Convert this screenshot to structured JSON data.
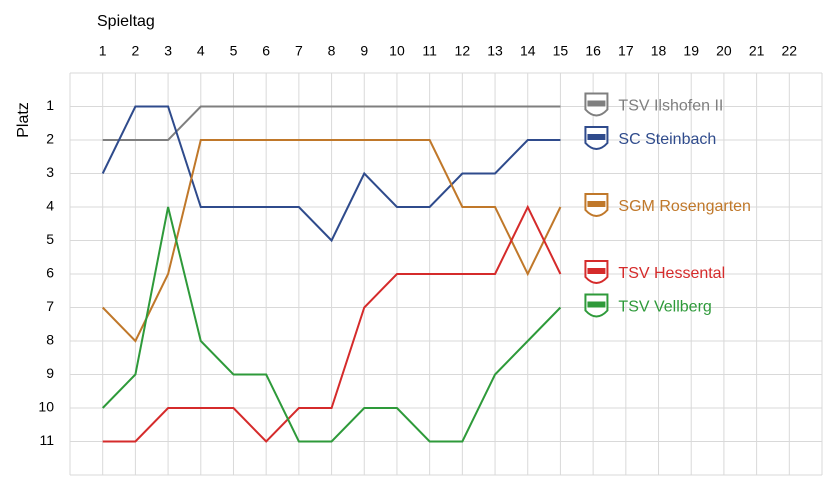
{
  "chart_data": {
    "type": "line",
    "x_label": "Spieltag",
    "y_label": "Platz",
    "x": [
      1,
      2,
      3,
      4,
      5,
      6,
      7,
      8,
      9,
      10,
      11,
      12,
      13,
      14,
      15,
      16,
      17,
      18,
      19,
      20,
      21,
      22
    ],
    "xlim": [
      0,
      23
    ],
    "xticks": [
      1,
      2,
      3,
      4,
      5,
      6,
      7,
      8,
      9,
      10,
      11,
      12,
      13,
      14,
      15,
      16,
      17,
      18,
      19,
      20,
      21,
      22
    ],
    "ylim": [
      12,
      0
    ],
    "yticks": [
      1,
      2,
      3,
      4,
      5,
      6,
      7,
      8,
      9,
      10,
      11
    ],
    "grid": true,
    "y_inverted": true,
    "series": [
      {
        "name": "TSV Ilshofen II",
        "color": "#7f7f7f",
        "values": [
          2,
          2,
          2,
          1,
          1,
          1,
          1,
          1,
          1,
          1,
          1,
          1,
          1,
          1,
          1,
          null,
          null,
          null,
          null,
          null,
          null,
          null
        ]
      },
      {
        "name": "SC Steinbach",
        "color": "#2f4b8c",
        "values": [
          3,
          1,
          1,
          4,
          4,
          4,
          4,
          5,
          3,
          4,
          4,
          3,
          3,
          2,
          2,
          null,
          null,
          null,
          null,
          null,
          null,
          null
        ]
      },
      {
        "name": "SGM Rosengarten",
        "color": "#c0782a",
        "values": [
          7,
          8,
          6,
          2,
          2,
          2,
          2,
          2,
          2,
          2,
          2,
          4,
          4,
          6,
          4,
          null,
          null,
          null,
          null,
          null,
          null,
          null
        ]
      },
      {
        "name": "TSV Hessental",
        "color": "#d52b2b",
        "values": [
          11,
          11,
          10,
          10,
          10,
          11,
          10,
          10,
          7,
          6,
          6,
          6,
          6,
          4,
          6,
          null,
          null,
          null,
          null,
          null,
          null,
          null
        ]
      },
      {
        "name": "TSV Vellberg",
        "color": "#2e9a3a",
        "values": [
          10,
          9,
          4,
          8,
          9,
          9,
          11,
          11,
          10,
          10,
          11,
          11,
          9,
          8,
          7,
          null,
          null,
          null,
          null,
          null,
          null,
          null
        ]
      }
    ]
  }
}
